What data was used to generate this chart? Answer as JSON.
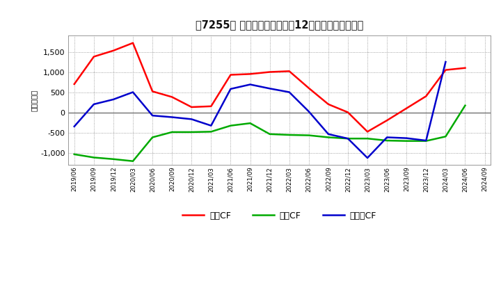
{
  "title": "　7255、 キャッシュフローの12か月移動合計の推移",
  "ylabel": "（百万円）",
  "background_color": "#ffffff",
  "plot_bg_color": "#ffffff",
  "grid_color": "#aaaaaa",
  "x_labels": [
    "2019/06",
    "2019/09",
    "2019/12",
    "2020/03",
    "2020/06",
    "2020/09",
    "2020/12",
    "2021/03",
    "2021/06",
    "2021/09",
    "2021/12",
    "2022/03",
    "2022/06",
    "2022/09",
    "2022/12",
    "2023/03",
    "2023/06",
    "2023/09",
    "2023/12",
    "2024/03",
    "2024/06",
    "2024/09"
  ],
  "operating_cf": [
    700,
    1380,
    1530,
    1720,
    520,
    380,
    130,
    150,
    930,
    950,
    1000,
    1020,
    600,
    200,
    0,
    -480,
    -200,
    100,
    400,
    1050,
    1100,
    null
  ],
  "investing_cf": [
    -1040,
    -1120,
    -1160,
    -1210,
    -620,
    -490,
    -490,
    -480,
    -330,
    -270,
    -540,
    -560,
    -570,
    -620,
    -650,
    -650,
    -700,
    -710,
    -710,
    -600,
    170,
    null
  ],
  "free_cf": [
    -350,
    200,
    320,
    500,
    -80,
    -120,
    -170,
    -330,
    580,
    690,
    590,
    500,
    20,
    -540,
    -650,
    -1130,
    -620,
    -640,
    -700,
    1250,
    null,
    null
  ],
  "operating_color": "#ff0000",
  "investing_color": "#00aa00",
  "free_color": "#0000cc",
  "ylim": [
    -1300,
    1900
  ],
  "yticks": [
    -1000,
    -500,
    0,
    500,
    1000,
    1500
  ],
  "legend_labels": [
    "営業CF",
    "投資CF",
    "フリーCF"
  ],
  "line_width": 1.8
}
